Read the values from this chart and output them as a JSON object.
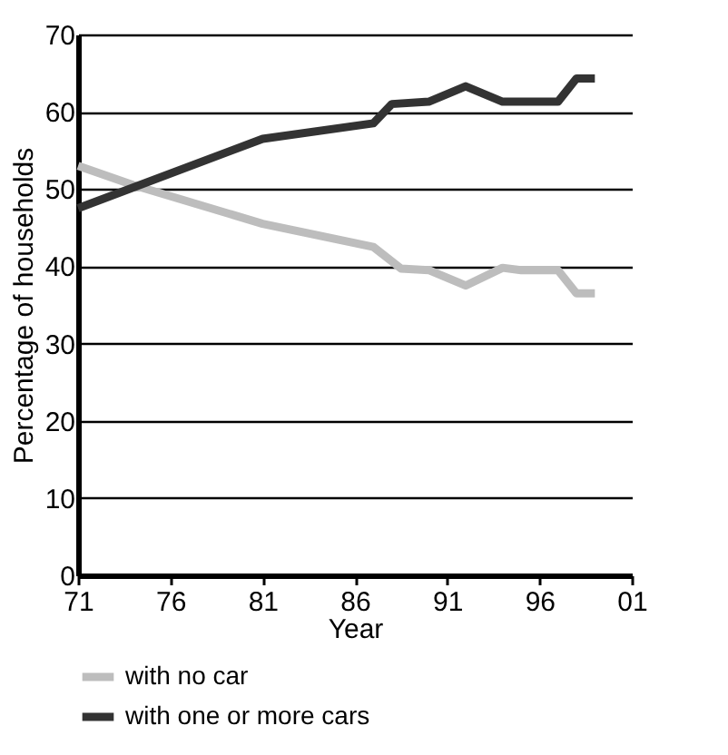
{
  "chart_data": {
    "type": "line",
    "xlabel": "Year",
    "ylabel": "Percentage of households",
    "xlim": [
      1971,
      2001
    ],
    "xticks": [
      {
        "value": 1971,
        "label": "71"
      },
      {
        "value": 1976,
        "label": "76"
      },
      {
        "value": 1981,
        "label": "81"
      },
      {
        "value": 1986,
        "label": "86"
      },
      {
        "value": 1991,
        "label": "91"
      },
      {
        "value": 1996,
        "label": "96"
      },
      {
        "value": 2001,
        "label": "01"
      }
    ],
    "ylim": [
      0,
      70
    ],
    "yticks": [
      0,
      10,
      20,
      30,
      40,
      50,
      60,
      70
    ],
    "grid": "y",
    "legend": "bottom",
    "marker": "none",
    "line_style": "solid",
    "series": [
      {
        "name": "with no car",
        "color": "#bdbdbd",
        "x": [
          1971,
          1974,
          1981,
          1987,
          1988.5,
          1990,
          1992,
          1994,
          1995,
          1997,
          1998,
          1999
        ],
        "values": [
          53,
          50.5,
          45.5,
          42.5,
          39.7,
          39.5,
          37.5,
          39.8,
          39.5,
          39.5,
          36.5,
          36.5
        ]
      },
      {
        "name": "with one or more cars",
        "color": "#333333",
        "x": [
          1971,
          1981,
          1987,
          1988,
          1990,
          1992,
          1994,
          1997,
          1998,
          1999
        ],
        "values": [
          47.5,
          56.5,
          58.5,
          61,
          61.3,
          63.3,
          61.3,
          61.3,
          64.3,
          64.3
        ]
      }
    ]
  }
}
